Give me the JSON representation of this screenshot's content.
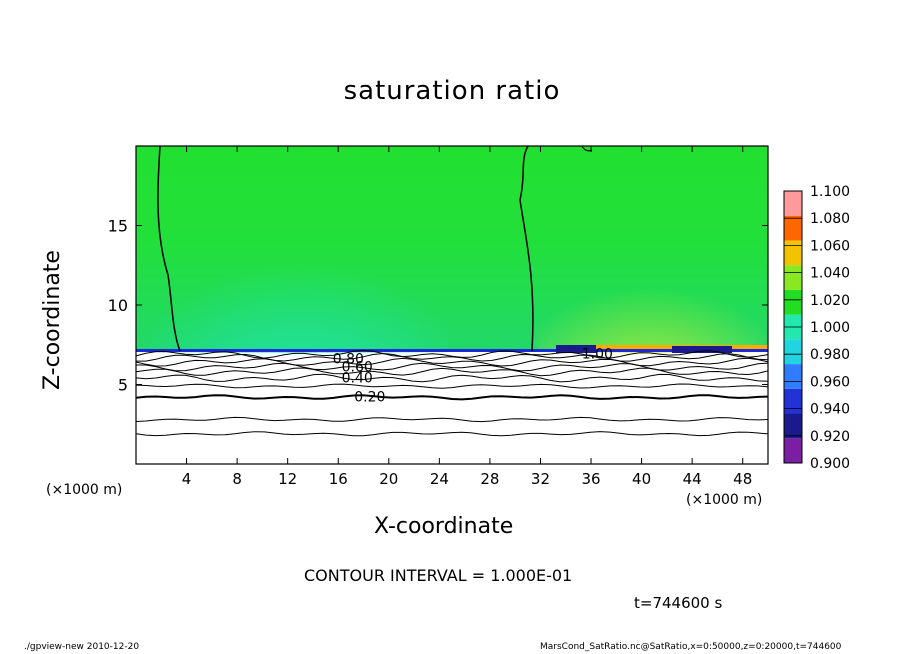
{
  "chart_data": {
    "type": "heatmap",
    "title": "saturation ratio",
    "xlabel": "X-coordinate",
    "ylabel": "Z-coordinate",
    "x_unit_note": "(×1000 m)",
    "xlim": [
      0,
      50
    ],
    "ylim": [
      0,
      20
    ],
    "x_ticks": [
      4,
      8,
      12,
      16,
      20,
      24,
      28,
      32,
      36,
      40,
      44,
      48
    ],
    "y_ticks": [
      5,
      10,
      15
    ],
    "colorbar": {
      "levels": [
        0.9,
        0.92,
        0.94,
        0.96,
        0.98,
        1.0,
        1.02,
        1.04,
        1.06,
        1.08,
        1.1
      ],
      "labels": [
        "0.900",
        "0.920",
        "0.940",
        "0.960",
        "0.980",
        "1.000",
        "1.020",
        "1.040",
        "1.060",
        "1.080",
        "1.100"
      ],
      "colors": [
        "#7a1fa2",
        "#1a1a8c",
        "#2332d6",
        "#2f7cff",
        "#22d3e0",
        "#22e8b0",
        "#22dd22",
        "#88e822",
        "#f2c400",
        "#ff6600",
        "#ff9a9a"
      ]
    },
    "contour_interval_text": "CONTOUR INTERVAL = 1.000E-01",
    "contour_labels": [
      "0.20",
      "0.40",
      "0.60",
      "0.80",
      "1.00"
    ],
    "cloud_base_height_km": 7.0,
    "field_above_cloud_base": 1.0,
    "sub_saturated_contours_km": [
      {
        "z": 1.9,
        "value": 0.0
      },
      {
        "z": 2.8,
        "value": 0.1
      },
      {
        "z": 4.2,
        "value": 0.2
      },
      {
        "z": 4.9,
        "value": 0.3
      },
      {
        "z": 5.4,
        "value": 0.4
      },
      {
        "z": 5.8,
        "value": 0.5
      },
      {
        "z": 6.1,
        "value": 0.6
      },
      {
        "z": 6.4,
        "value": 0.7
      },
      {
        "z": 6.7,
        "value": 0.8
      },
      {
        "z": 6.9,
        "value": 0.9
      }
    ]
  },
  "annotations": {
    "time": "t=744600 s",
    "footer_left": "./gpview-new   2010-12-20",
    "footer_right": "MarsCond_SatRatio.nc@SatRatio,x=0:50000,z=0:20000,t=744600"
  }
}
